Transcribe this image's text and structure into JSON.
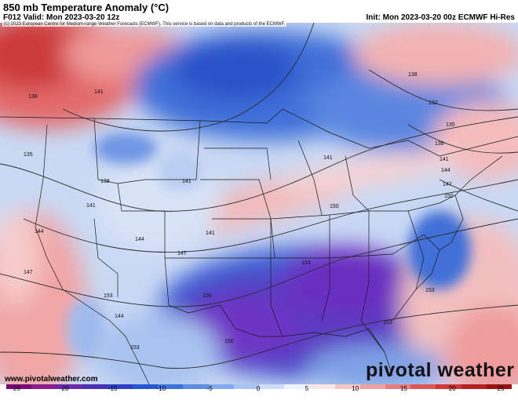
{
  "header": {
    "title": "850 mb Temperature Anomaly (°C)",
    "valid": "F012 Valid: Mon 2023-03-20 12z",
    "init": "Init: Mon 2023-03-20 00z ECMWF Hi-Res"
  },
  "copyright": "(c) 2023 European Centre for Medium-range Weather Forecasts (ECMWF). This service is based on data and products of the ECMWF.",
  "footer": {
    "site": "www.pivotalweather.com",
    "logo": "pivotal weather"
  },
  "contour_labels": [
    "138",
    "141",
    "135",
    "138",
    "141",
    "144",
    "141",
    "147",
    "144",
    "147",
    "150",
    "153",
    "150",
    "153",
    "132",
    "135",
    "138",
    "141",
    "144",
    "147",
    "150",
    "153",
    "141",
    "138",
    "141",
    "144",
    "153",
    "150",
    "153"
  ],
  "colorbar": {
    "ticks": [
      "-25",
      "-20",
      "-15",
      "-10",
      "-5",
      "0",
      "5",
      "10",
      "15",
      "20",
      "25"
    ],
    "colors": [
      "#7a0a7a",
      "#8d1d8d",
      "#6b2aa8",
      "#4b2fb8",
      "#2b3fc8",
      "#2457d6",
      "#3a72de",
      "#5a8ee6",
      "#80aaee",
      "#a6c4f3",
      "#cddcf8",
      "#eef2fb",
      "#fbe6e6",
      "#f6c6c6",
      "#f0a2a2",
      "#e97c7c",
      "#df5656",
      "#d03636",
      "#b81f1f",
      "#9c1010"
    ]
  }
}
